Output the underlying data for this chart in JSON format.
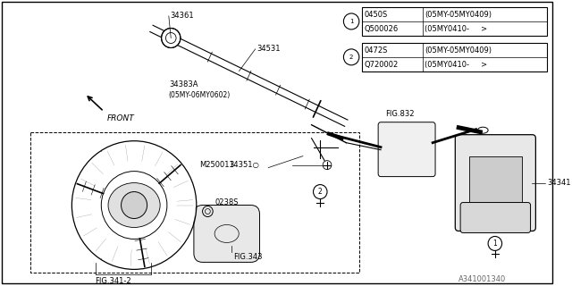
{
  "bg_color": "#ffffff",
  "table_rows": [
    [
      "0450S",
      "(05MY-05MY0409)"
    ],
    [
      "Q500026",
      "(05MY0410-     >"
    ],
    [
      "0472S",
      "(05MY-05MY0409)"
    ],
    [
      "Q720002",
      "(05MY0410-     >"
    ]
  ],
  "footer": "A341001340"
}
